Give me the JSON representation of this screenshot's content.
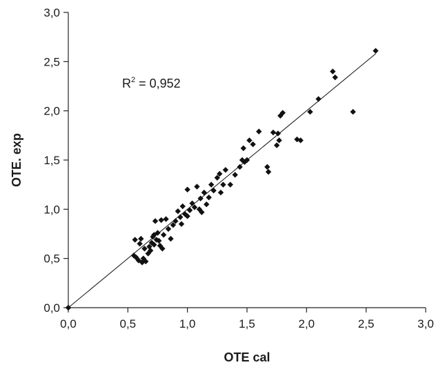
{
  "chart_data": {
    "type": "scatter",
    "xlabel": "OTE cal",
    "ylabel": "OTE. exp",
    "xlim": [
      0,
      3
    ],
    "ylim": [
      0,
      3
    ],
    "xticks": [
      "0,0",
      "0,5",
      "1,0",
      "1,5",
      "2,0",
      "2,5",
      "3,0"
    ],
    "yticks": [
      "0,0",
      "0,5",
      "1,0",
      "1,5",
      "2,0",
      "2,5",
      "3,0"
    ],
    "annotation": {
      "prefix": "R",
      "superscript": "2",
      "text": " = 0,952"
    },
    "grid": false,
    "legend": "none",
    "marker_color": "#111111",
    "fit_line": {
      "x": [
        0,
        2.58
      ],
      "y": [
        0,
        2.58
      ],
      "color": "#222222"
    },
    "points": [
      {
        "x": 0.0,
        "y": 0.0
      },
      {
        "x": 0.55,
        "y": 0.53
      },
      {
        "x": 0.56,
        "y": 0.69
      },
      {
        "x": 0.57,
        "y": 0.51
      },
      {
        "x": 0.59,
        "y": 0.48
      },
      {
        "x": 0.6,
        "y": 0.65
      },
      {
        "x": 0.61,
        "y": 0.7
      },
      {
        "x": 0.62,
        "y": 0.46
      },
      {
        "x": 0.63,
        "y": 0.5
      },
      {
        "x": 0.64,
        "y": 0.6
      },
      {
        "x": 0.65,
        "y": 0.47
      },
      {
        "x": 0.67,
        "y": 0.55
      },
      {
        "x": 0.68,
        "y": 0.62
      },
      {
        "x": 0.69,
        "y": 0.58
      },
      {
        "x": 0.7,
        "y": 0.66
      },
      {
        "x": 0.71,
        "y": 0.72
      },
      {
        "x": 0.72,
        "y": 0.74
      },
      {
        "x": 0.72,
        "y": 0.64
      },
      {
        "x": 0.73,
        "y": 0.88
      },
      {
        "x": 0.74,
        "y": 0.69
      },
      {
        "x": 0.75,
        "y": 0.76
      },
      {
        "x": 0.76,
        "y": 0.68
      },
      {
        "x": 0.77,
        "y": 0.63
      },
      {
        "x": 0.78,
        "y": 0.89
      },
      {
        "x": 0.79,
        "y": 0.6
      },
      {
        "x": 0.8,
        "y": 0.74
      },
      {
        "x": 0.82,
        "y": 0.9
      },
      {
        "x": 0.84,
        "y": 0.8
      },
      {
        "x": 0.86,
        "y": 0.7
      },
      {
        "x": 0.88,
        "y": 0.84
      },
      {
        "x": 0.9,
        "y": 0.88
      },
      {
        "x": 0.92,
        "y": 0.98
      },
      {
        "x": 0.94,
        "y": 0.92
      },
      {
        "x": 0.95,
        "y": 0.85
      },
      {
        "x": 0.96,
        "y": 1.03
      },
      {
        "x": 0.98,
        "y": 0.95
      },
      {
        "x": 1.0,
        "y": 0.93
      },
      {
        "x": 1.0,
        "y": 1.2
      },
      {
        "x": 1.02,
        "y": 0.99
      },
      {
        "x": 1.04,
        "y": 1.06
      },
      {
        "x": 1.06,
        "y": 1.02
      },
      {
        "x": 1.08,
        "y": 1.23
      },
      {
        "x": 1.1,
        "y": 1.0
      },
      {
        "x": 1.11,
        "y": 1.11
      },
      {
        "x": 1.12,
        "y": 0.97
      },
      {
        "x": 1.14,
        "y": 1.17
      },
      {
        "x": 1.16,
        "y": 1.05
      },
      {
        "x": 1.18,
        "y": 1.12
      },
      {
        "x": 1.2,
        "y": 1.25
      },
      {
        "x": 1.22,
        "y": 1.19
      },
      {
        "x": 1.25,
        "y": 1.32
      },
      {
        "x": 1.27,
        "y": 1.36
      },
      {
        "x": 1.28,
        "y": 1.17
      },
      {
        "x": 1.3,
        "y": 1.25
      },
      {
        "x": 1.32,
        "y": 1.4
      },
      {
        "x": 1.36,
        "y": 1.25
      },
      {
        "x": 1.4,
        "y": 1.35
      },
      {
        "x": 1.44,
        "y": 1.43
      },
      {
        "x": 1.46,
        "y": 1.5
      },
      {
        "x": 1.47,
        "y": 1.62
      },
      {
        "x": 1.48,
        "y": 1.48
      },
      {
        "x": 1.5,
        "y": 1.5
      },
      {
        "x": 1.52,
        "y": 1.7
      },
      {
        "x": 1.55,
        "y": 1.66
      },
      {
        "x": 1.6,
        "y": 1.79
      },
      {
        "x": 1.67,
        "y": 1.43
      },
      {
        "x": 1.68,
        "y": 1.38
      },
      {
        "x": 1.72,
        "y": 1.78
      },
      {
        "x": 1.75,
        "y": 1.65
      },
      {
        "x": 1.76,
        "y": 1.77
      },
      {
        "x": 1.77,
        "y": 1.7
      },
      {
        "x": 1.78,
        "y": 1.95
      },
      {
        "x": 1.8,
        "y": 1.98
      },
      {
        "x": 1.92,
        "y": 1.71
      },
      {
        "x": 1.95,
        "y": 1.7
      },
      {
        "x": 2.03,
        "y": 1.99
      },
      {
        "x": 2.1,
        "y": 2.12
      },
      {
        "x": 2.22,
        "y": 2.4
      },
      {
        "x": 2.24,
        "y": 2.34
      },
      {
        "x": 2.39,
        "y": 1.99
      },
      {
        "x": 2.58,
        "y": 2.61
      }
    ]
  }
}
